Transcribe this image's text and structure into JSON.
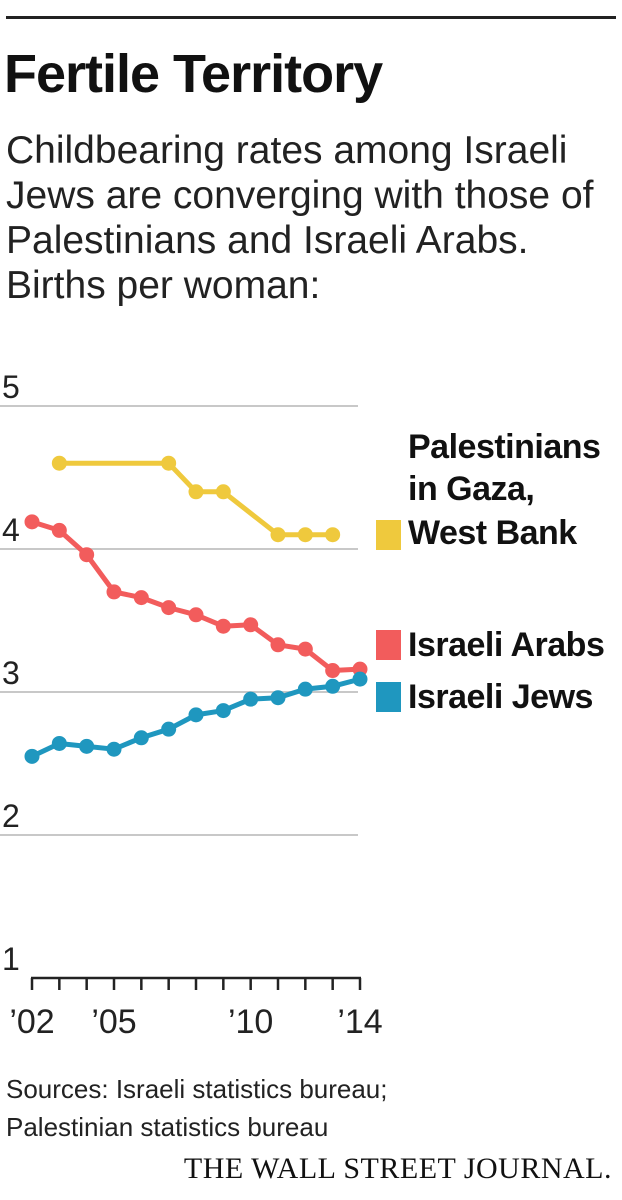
{
  "title": "Fertile Territory",
  "subtitle": "Childbearing rates among Israeli Jews are converging with those of Palestinians and Israeli Arabs. Births per woman:",
  "source_lines": [
    "Sources: Israeli statistics bureau;",
    "Palestinian statistics bureau"
  ],
  "brand": "THE WALL STREET JOURNAL.",
  "chart_data": {
    "type": "line",
    "title": "Fertile Territory",
    "ylabel": "Births per woman",
    "xlabel": "",
    "ylim": [
      1,
      5
    ],
    "xlim": [
      2002,
      2014
    ],
    "yticks": [
      1,
      2,
      3,
      4,
      5
    ],
    "grid": true,
    "xtick_labels": [
      {
        "x": 2002,
        "label": "’02"
      },
      {
        "x": 2005,
        "label": "’05"
      },
      {
        "x": 2010,
        "label": "’10"
      },
      {
        "x": 2014,
        "label": "’14"
      }
    ],
    "series": [
      {
        "name": "Palestinians in Gaza, West Bank",
        "legend_lines": [
          "Palestinians",
          "in Gaza,",
          "West Bank"
        ],
        "color": "#efc93d",
        "x": [
          2003,
          2007,
          2008,
          2009,
          2011,
          2012,
          2013
        ],
        "values": [
          4.6,
          4.6,
          4.4,
          4.4,
          4.1,
          4.1,
          4.1
        ]
      },
      {
        "name": "Israeli Arabs",
        "legend_lines": [
          "Israeli Arabs"
        ],
        "color": "#f25c5c",
        "x": [
          2002,
          2003,
          2004,
          2005,
          2006,
          2007,
          2008,
          2009,
          2010,
          2011,
          2012,
          2013,
          2014
        ],
        "values": [
          4.19,
          4.13,
          3.96,
          3.7,
          3.66,
          3.59,
          3.54,
          3.46,
          3.47,
          3.33,
          3.3,
          3.15,
          3.16
        ]
      },
      {
        "name": "Israeli Jews",
        "legend_lines": [
          "Israeli Jews"
        ],
        "color": "#1f97bf",
        "x": [
          2002,
          2003,
          2004,
          2005,
          2006,
          2007,
          2008,
          2009,
          2010,
          2011,
          2012,
          2013,
          2014
        ],
        "values": [
          2.55,
          2.64,
          2.62,
          2.6,
          2.68,
          2.74,
          2.84,
          2.87,
          2.95,
          2.96,
          3.02,
          3.04,
          3.09
        ]
      }
    ]
  }
}
